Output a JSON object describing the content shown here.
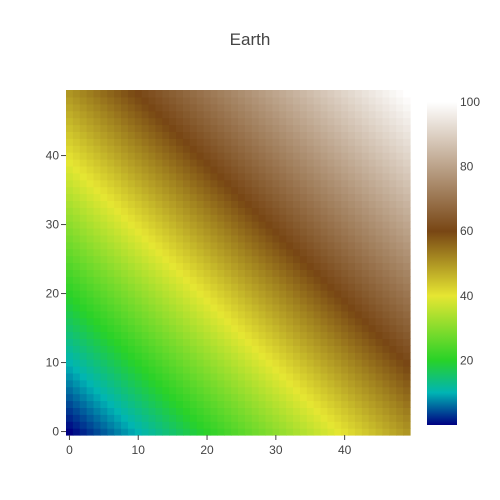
{
  "chart_data": {
    "type": "heatmap",
    "title": "Earth",
    "xlabel": "",
    "ylabel": "",
    "x": [
      0,
      1,
      2,
      3,
      4,
      5,
      6,
      7,
      8,
      9,
      10,
      11,
      12,
      13,
      14,
      15,
      16,
      17,
      18,
      19,
      20,
      21,
      22,
      23,
      24,
      25,
      26,
      27,
      28,
      29,
      30,
      31,
      32,
      33,
      34,
      35,
      36,
      37,
      38,
      39,
      40,
      41,
      42,
      43,
      44,
      45,
      46,
      47,
      48,
      49
    ],
    "y": [
      0,
      1,
      2,
      3,
      4,
      5,
      6,
      7,
      8,
      9,
      10,
      11,
      12,
      13,
      14,
      15,
      16,
      17,
      18,
      19,
      20,
      21,
      22,
      23,
      24,
      25,
      26,
      27,
      28,
      29,
      30,
      31,
      32,
      33,
      34,
      35,
      36,
      37,
      38,
      39,
      40,
      41,
      42,
      43,
      44,
      45,
      46,
      47,
      48,
      49
    ],
    "z_formula": "z = x + y (0 to 98)",
    "xlim": [
      -0.5,
      49.5
    ],
    "ylim": [
      -0.5,
      49.5
    ],
    "x_ticks": [
      "0",
      "10",
      "20",
      "30",
      "40"
    ],
    "y_ticks": [
      "0",
      "10",
      "20",
      "30",
      "40"
    ],
    "colorscale_name": "Earth",
    "colorscale": [
      [
        0.0,
        "#000082"
      ],
      [
        0.1,
        "#00b4b4"
      ],
      [
        0.2,
        "#28d228"
      ],
      [
        0.4,
        "#e6e632"
      ],
      [
        0.6,
        "#784614"
      ],
      [
        1.0,
        "#ffffff"
      ]
    ],
    "colorbar": {
      "range": [
        0,
        100
      ],
      "ticks": [
        "20",
        "40",
        "60",
        "80",
        "100"
      ]
    }
  }
}
